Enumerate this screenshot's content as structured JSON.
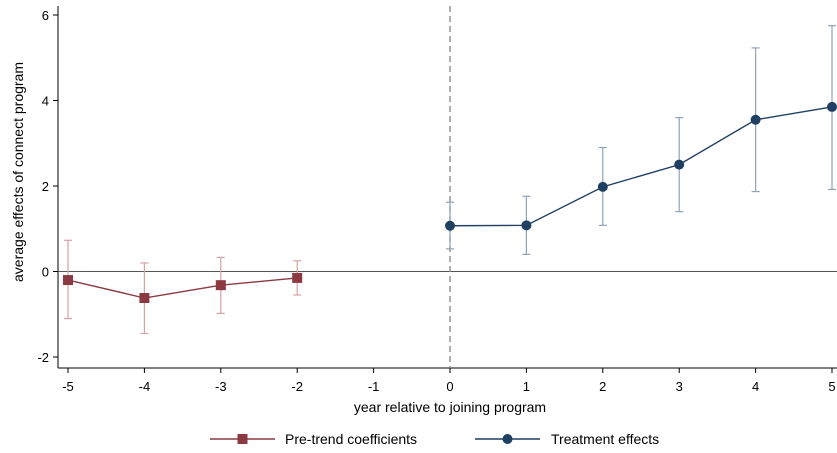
{
  "chart_data": {
    "type": "line",
    "xlabel": "year relative to joining program",
    "ylabel": "average effects of connect program",
    "xlim": [
      -5,
      5
    ],
    "ylim": [
      -2,
      6
    ],
    "x_ticks": [
      "-5",
      "-4",
      "-3",
      "-2",
      "-1",
      "0",
      "1",
      "2",
      "3",
      "4",
      "5"
    ],
    "y_ticks": [
      "-2",
      "0",
      "2",
      "4",
      "6"
    ],
    "reference_lines": {
      "horizontal_y": 0,
      "vertical_dashed_x": 0
    },
    "grid": false,
    "legend_position": "bottom",
    "series": [
      {
        "name": "Pre-trend coefficients",
        "color": "#8b3a42",
        "marker": "square",
        "x": [
          -5,
          -4,
          -3,
          -2
        ],
        "y": [
          -0.2,
          -0.62,
          -0.32,
          -0.15
        ],
        "ci_low": [
          -1.1,
          -1.45,
          -0.98,
          -0.55
        ],
        "ci_high": [
          0.73,
          0.2,
          0.33,
          0.25
        ]
      },
      {
        "name": "Treatment effects",
        "color": "#1f3f63",
        "marker": "circle",
        "x": [
          0,
          1,
          2,
          3,
          4,
          5
        ],
        "y": [
          1.07,
          1.08,
          1.98,
          2.5,
          3.55,
          3.85
        ],
        "ci_low": [
          0.53,
          0.4,
          1.08,
          1.4,
          1.87,
          1.92
        ],
        "ci_high": [
          1.62,
          1.76,
          2.9,
          3.6,
          5.23,
          5.75
        ]
      }
    ]
  }
}
